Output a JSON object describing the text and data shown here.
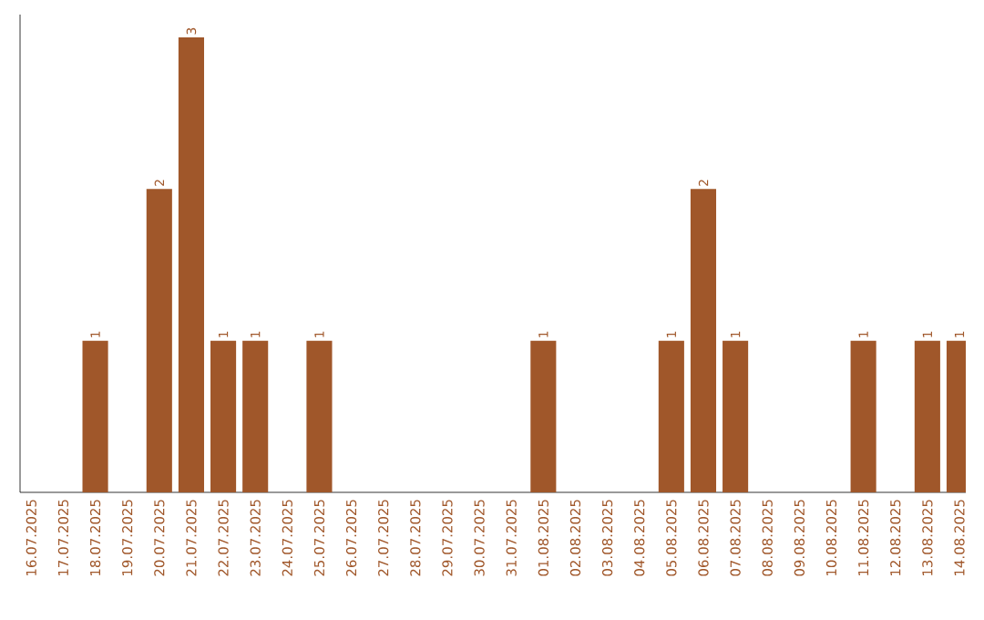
{
  "chart_data": {
    "type": "bar",
    "categories": [
      "16.07.2025",
      "17.07.2025",
      "18.07.2025",
      "19.07.2025",
      "20.07.2025",
      "21.07.2025",
      "22.07.2025",
      "23.07.2025",
      "24.07.2025",
      "25.07.2025",
      "26.07.2025",
      "27.07.2025",
      "28.07.2025",
      "29.07.2025",
      "30.07.2025",
      "31.07.2025",
      "01.08.2025",
      "02.08.2025",
      "03.08.2025",
      "04.08.2025",
      "05.08.2025",
      "06.08.2025",
      "07.08.2025",
      "08.08.2025",
      "09.08.2025",
      "10.08.2025",
      "11.08.2025",
      "12.08.2025",
      "13.08.2025",
      "14.08.2025"
    ],
    "values": [
      0,
      0,
      1,
      0,
      2,
      3,
      1,
      1,
      0,
      1,
      0,
      0,
      0,
      0,
      0,
      0,
      1,
      0,
      0,
      0,
      1,
      2,
      1,
      0,
      0,
      0,
      1,
      0,
      1,
      1
    ],
    "value_labels": [
      null,
      null,
      "1",
      null,
      "2",
      "3",
      "1",
      "1",
      null,
      "1",
      null,
      null,
      null,
      null,
      null,
      null,
      "1",
      null,
      null,
      null,
      "1",
      "2",
      "1",
      null,
      null,
      null,
      "1",
      null,
      "1",
      "1"
    ],
    "color": "#a0572a",
    "ylim": [
      0,
      3.15
    ],
    "tick_labels": "x"
  }
}
